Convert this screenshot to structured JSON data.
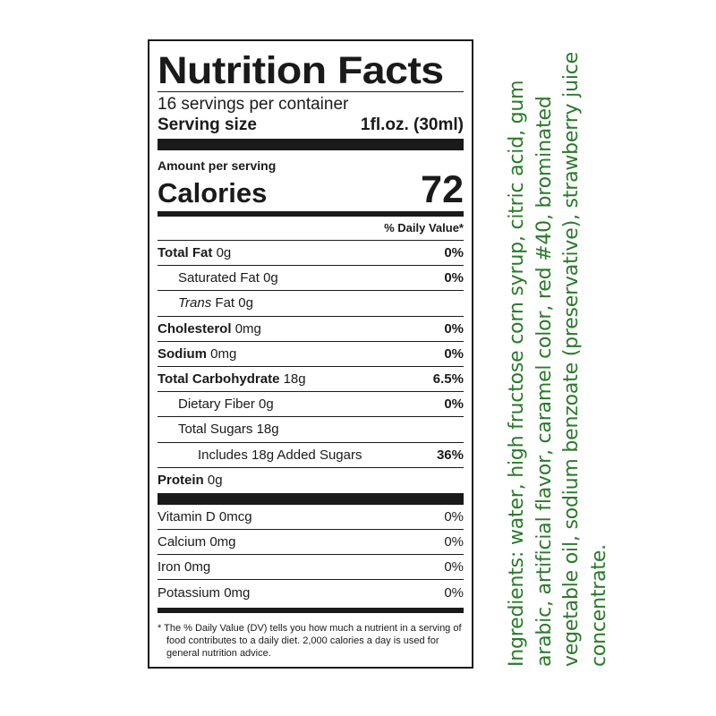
{
  "nutrition": {
    "title": "Nutrition Facts",
    "servings_per_container": "16 servings per container",
    "serving_size_label": "Serving size",
    "serving_size_value": "1fl.oz. (30ml)",
    "amount_per_serving": "Amount per serving",
    "calories_label": "Calories",
    "calories_value": "72",
    "daily_value_header": "% Daily Value*",
    "nutrients": [
      {
        "name": "Total Fat",
        "amount": "0g",
        "dv": "0%"
      },
      {
        "name": "Saturated Fat",
        "amount": "0g",
        "dv": "0%"
      },
      {
        "name": "Trans",
        "name_rest": "Fat",
        "amount": "0g",
        "dv": ""
      },
      {
        "name": "Cholesterol",
        "amount": "0mg",
        "dv": "0%"
      },
      {
        "name": "Sodium",
        "amount": "0mg",
        "dv": "0%"
      },
      {
        "name": "Total Carbohydrate",
        "amount": "18g",
        "dv": "6.5%"
      },
      {
        "name": "Dietary Fiber",
        "amount": "0g",
        "dv": "0%"
      },
      {
        "name": "Total Sugars",
        "amount": "18g",
        "dv": ""
      },
      {
        "name": "Includes 18g Added Sugars",
        "amount": "",
        "dv": "36%"
      },
      {
        "name": "Protein",
        "amount": "0g",
        "dv": ""
      }
    ],
    "vitamins": [
      {
        "label": "Vitamin D 0mcg",
        "dv": "0%"
      },
      {
        "label": "Calcium 0mg",
        "dv": "0%"
      },
      {
        "label": "Iron 0mg",
        "dv": "0%"
      },
      {
        "label": "Potassium 0mg",
        "dv": "0%"
      }
    ],
    "footnote": "* The % Daily Value (DV) tells you how much a nutrient in a serving of food contributes to a daily diet. 2,000 calories a day is used for general nutrition advice."
  },
  "ingredients": {
    "text": "Ingredients: water, high fructose corn syrup, citric acid, gum arabic, artificial flavor, caramel color, red #40, brominated vegetable oil, sodium benzoate (preservative), strawberry juice concentrate.",
    "color": "#2a7a2a"
  }
}
